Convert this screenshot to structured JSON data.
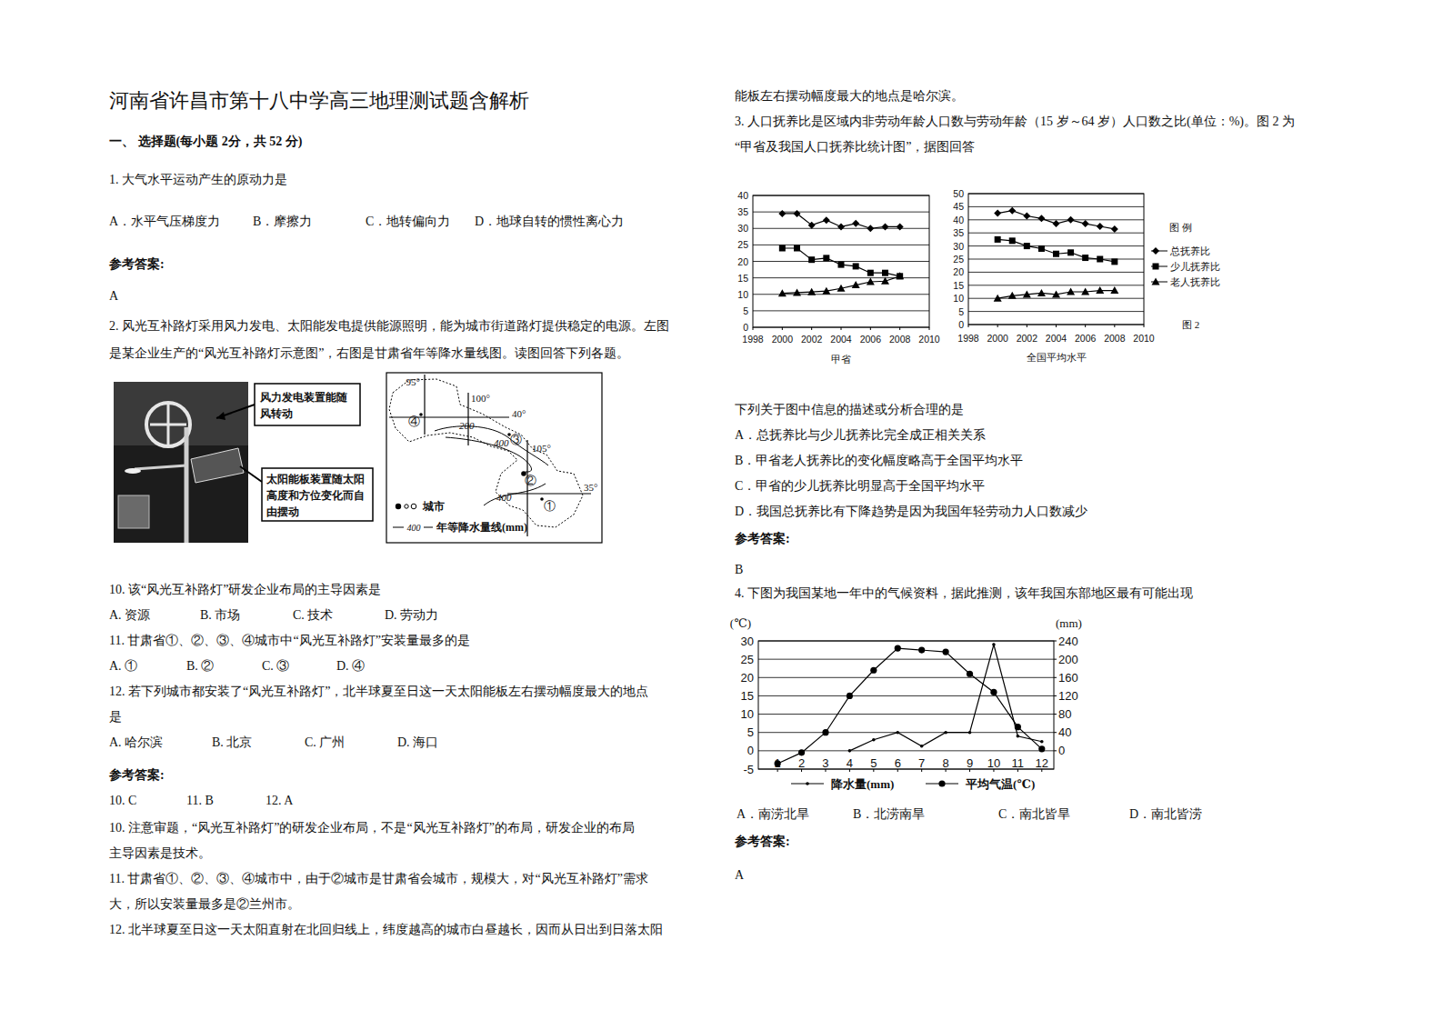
{
  "document": {
    "title": "河南省许昌市第十八中学高三地理测试题含解析",
    "left": [
      {
        "text": "一、 选择题(每小题 2分，共 52 分)"
      },
      {
        "text": "1. 大气水平运动产生的原动力是"
      },
      {
        "options": [
          "A．水平气压梯度力",
          "B．摩擦力",
          "C．地转偏向力",
          "D．地球自转的惯性离心力"
        ]
      },
      {
        "text": "参考答案:"
      },
      {
        "text": "A"
      },
      {
        "text": "2. 风光互补路灯采用风力发电、太阳能发电提供能源照明，能为城市街道路灯提供稳定的电源。左图"
      },
      {
        "text": "是某企业生产的“风光互补路灯示意图”，右图是甘肃省年等降水量线图。读图回答下列各题。"
      },
      {
        "text": "10.  该“风光互补路灯”研发企业布局的主导因素是"
      },
      {
        "options": [
          "A. 资源",
          "B. 市场",
          "C. 技术",
          "D. 劳动力"
        ]
      },
      {
        "text": "11.  甘肃省①、②、③、④城市中“风光互补路灯”安装量最多的是"
      },
      {
        "options": [
          "A. ①",
          "B. ②",
          "C. ③",
          "D. ④"
        ]
      },
      {
        "text": "12.  若下列城市都安装了“风光互补路灯”，北半球夏至日这一天太阳能板左右摆动幅度最大的地点"
      },
      {
        "text": "是"
      },
      {
        "options": [
          "A. 哈尔滨",
          "B. 北京",
          "C. 广州",
          "D. 海口"
        ]
      },
      {
        "text": "参考答案:"
      },
      {
        "options": [
          "10. C",
          "11. B",
          "12. A"
        ]
      },
      {
        "text": "10.  注意审题，“风光互补路灯”的研发企业布局，不是“风光互补路灯”的布局，研发企业的布局"
      },
      {
        "text": "主导因素是技术。"
      },
      {
        "text": "11.  甘肃省①、②、③、④城市中，由于②城市是甘肃省会城市，规模大，对“风光互补路灯”需求"
      },
      {
        "text": "大，所以安装量最多是②兰州市。"
      },
      {
        "text": "12.  北半球夏至日这一天太阳直射在北回归线上，纬度越高的城市白昼越长，因而从日出到日落太阳"
      }
    ],
    "right": [
      {
        "text": "能板左右摆动幅度最大的地点是哈尔滨。"
      },
      {
        "text": "3. 人口抚养比是区域内非劳动年龄人口数与劳动年龄（15 岁～64 岁）人口数之比(单位：%)。图 2 为"
      },
      {
        "text": "“甲省及我国人口抚养比统计图”，据图回答"
      },
      {
        "text": "下列关于图中信息的描述或分析合理的是"
      },
      {
        "text": "A．总抚养比与少儿抚养比完全成正相关关系"
      },
      {
        "text": "B．甲省老人抚养比的变化幅度略高于全国平均水平"
      },
      {
        "text": "C．甲省的少儿抚养比明显高于全国平均水平"
      },
      {
        "text": "D．我国总抚养比有下降趋势是因为我国年轻劳动力人口数减少"
      },
      {
        "text": "参考答案:"
      },
      {
        "text": "B"
      },
      {
        "text": "4. 下图为我国某地一年中的气候资料，据此推测，该年我国东部地区最有可能出现"
      },
      {
        "options": [
          "A．南涝北旱",
          "B．北涝南旱",
          "C．南北皆旱",
          "D．南北皆涝"
        ]
      },
      {
        "text": "参考答案:"
      },
      {
        "text": "A"
      }
    ],
    "lamp_figure": {
      "wind_note": [
        "风力发电装置能随",
        "风转动"
      ],
      "solar_note": [
        "太阳能板装置随太阳",
        "高度和方位变化而自",
        "由摆动"
      ]
    },
    "map_figure": {
      "meridians": [
        "95°",
        "100°",
        "105°"
      ],
      "parallels": [
        "40°",
        "35°"
      ],
      "isohyets": [
        "200",
        "400",
        "400"
      ],
      "cities": [
        "①",
        "②",
        "③",
        "④"
      ],
      "legend_city": "城市",
      "legend_isohyet_sample": "400",
      "legend_isohyet": "年等降水量线(mm)"
    },
    "fig2_label": "图 2"
  },
  "chart_data": [
    {
      "type": "line",
      "title": "甲省",
      "x": [
        2000,
        2001,
        2002,
        2003,
        2004,
        2005,
        2006,
        2007,
        2008
      ],
      "xlim": [
        1998,
        2010
      ],
      "xticks": [
        1998,
        2000,
        2002,
        2004,
        2006,
        2008,
        2010
      ],
      "ylim": [
        0,
        40
      ],
      "yticks": [
        0,
        5,
        10,
        15,
        20,
        25,
        30,
        35,
        40
      ],
      "grid": true,
      "series": [
        {
          "color": "#000000",
          "marker": "diamond",
          "values": [
            34.5,
            34.5,
            31,
            32.5,
            30.5,
            31.5,
            30,
            30.5,
            30.5
          ]
        },
        {
          "color": "#000000",
          "marker": "square",
          "values": [
            24,
            24,
            20.5,
            21,
            19,
            18.5,
            16.5,
            16.5,
            15.5
          ]
        },
        {
          "color": "#000000",
          "marker": "triangle",
          "values": [
            10.3,
            10.5,
            10.7,
            11,
            11.8,
            12.8,
            13.8,
            14,
            15.5
          ]
        }
      ]
    },
    {
      "type": "line",
      "title": "全国平均水平",
      "x": [
        2000,
        2001,
        2002,
        2003,
        2004,
        2005,
        2006,
        2007,
        2008
      ],
      "xlim": [
        1998,
        2010
      ],
      "xticks": [
        1998,
        2000,
        2002,
        2004,
        2006,
        2008,
        2010
      ],
      "ylim": [
        0,
        50
      ],
      "yticks": [
        0,
        5,
        10,
        15,
        20,
        25,
        30,
        35,
        40,
        45,
        50
      ],
      "grid": true,
      "legend": "right",
      "legend_title": "图 例",
      "series": [
        {
          "name": "总抚养比",
          "color": "#000000",
          "marker": "diamond",
          "values": [
            42.5,
            43.5,
            41.5,
            40.5,
            38.5,
            40,
            38.5,
            37.5,
            36.5
          ]
        },
        {
          "name": "少儿抚养比",
          "color": "#000000",
          "marker": "square",
          "values": [
            32.5,
            32,
            30,
            29,
            27,
            27.5,
            25.5,
            25,
            24
          ]
        },
        {
          "name": "老人抚养比",
          "color": "#000000",
          "marker": "triangle",
          "values": [
            10,
            11,
            11.5,
            12,
            11.5,
            12.5,
            12.5,
            13,
            13
          ]
        }
      ]
    },
    {
      "type": "line",
      "x": [
        1,
        2,
        3,
        4,
        5,
        6,
        7,
        8,
        9,
        10,
        11,
        12
      ],
      "xlim": [
        0.2,
        12.5
      ],
      "xticks": [
        1,
        2,
        3,
        4,
        5,
        6,
        7,
        8,
        9,
        10,
        11,
        12
      ],
      "ylim": [
        -5,
        30
      ],
      "yticks": [
        -5,
        0,
        5,
        10,
        15,
        20,
        25,
        30
      ],
      "y2lim": [
        -40,
        240
      ],
      "y2ticks": [
        0,
        40,
        80,
        120,
        160,
        200,
        240
      ],
      "ylabel": "(℃)",
      "y2label": "(mm)",
      "grid": true,
      "legend": "bottom",
      "series": [
        {
          "name": "降水量(mm)",
          "axis": "y2",
          "color": "#000000",
          "marker": "dot",
          "values": [
            null,
            null,
            null,
            0,
            24,
            40,
            10,
            40,
            40,
            232,
            32,
            20
          ]
        },
        {
          "name": "平均气温(℃)",
          "color": "#000000",
          "marker": "circle",
          "values": [
            -3.5,
            -0.5,
            5,
            15,
            22,
            28,
            27.5,
            27,
            21,
            16,
            6.5,
            0.5
          ]
        }
      ]
    }
  ]
}
